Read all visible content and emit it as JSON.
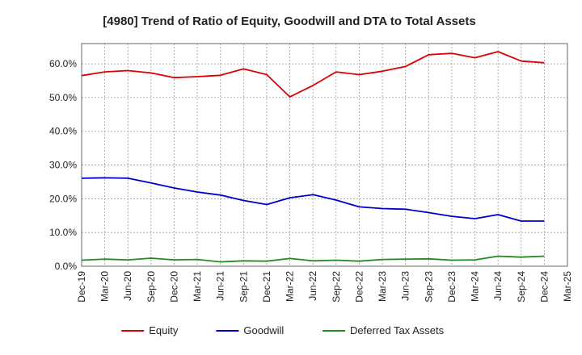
{
  "chart_data": {
    "type": "line",
    "title": "[4980]  Trend of Ratio of Equity, Goodwill and DTA to Total Assets",
    "xlabel": "",
    "ylabel": "",
    "ylim": [
      0,
      66
    ],
    "yticks": [
      0,
      10,
      20,
      30,
      40,
      50,
      60
    ],
    "ytick_labels": [
      "0.0%",
      "10.0%",
      "20.0%",
      "30.0%",
      "40.0%",
      "50.0%",
      "60.0%"
    ],
    "grid": true,
    "legend_position": "bottom",
    "categories": [
      "Dec-19",
      "Mar-20",
      "Jun-20",
      "Sep-20",
      "Dec-20",
      "Mar-21",
      "Jun-21",
      "Sep-21",
      "Dec-21",
      "Mar-22",
      "Jun-22",
      "Sep-22",
      "Dec-22",
      "Mar-23",
      "Jun-23",
      "Sep-23",
      "Dec-23",
      "Mar-24",
      "Jun-24",
      "Sep-24",
      "Dec-24",
      "Mar-25"
    ],
    "series": [
      {
        "name": "Equity",
        "color": "#dd0000",
        "values": [
          56.5,
          57.6,
          58.0,
          57.3,
          55.9,
          56.2,
          56.6,
          58.5,
          56.8,
          50.2,
          53.6,
          57.6,
          56.8,
          57.8,
          59.2,
          62.7,
          63.1,
          61.8,
          63.6,
          60.8,
          60.3,
          null
        ]
      },
      {
        "name": "Goodwill",
        "color": "#0000cc",
        "values": [
          26.1,
          26.2,
          26.1,
          24.7,
          23.2,
          22.0,
          21.1,
          19.5,
          18.3,
          20.3,
          21.2,
          19.6,
          17.6,
          17.1,
          16.9,
          15.9,
          14.8,
          14.1,
          15.3,
          13.4,
          13.4,
          null
        ]
      },
      {
        "name": "Deferred Tax Assets",
        "color": "#228b22",
        "values": [
          1.8,
          2.1,
          1.9,
          2.4,
          1.9,
          2.0,
          1.3,
          1.6,
          1.5,
          2.3,
          1.6,
          1.8,
          1.5,
          2.0,
          2.1,
          2.2,
          1.8,
          1.9,
          3.0,
          2.7,
          3.0,
          null
        ]
      }
    ]
  }
}
